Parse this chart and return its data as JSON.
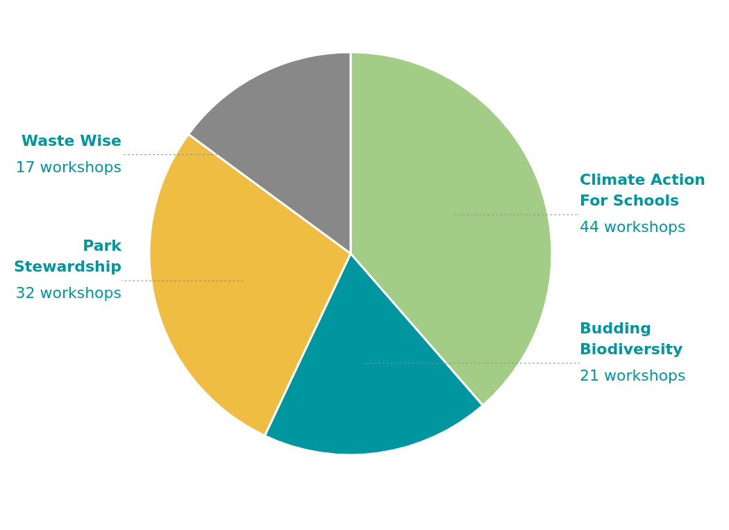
{
  "chart_data": {
    "type": "pie",
    "categories": [
      "Climate Action For Schools",
      "Budding Biodiversity",
      "Park Stewardship",
      "Waste Wise"
    ],
    "values": [
      44,
      21,
      32,
      17
    ],
    "colors": [
      "#a3cd86",
      "#0096a0",
      "#f0bd43",
      "#888888"
    ],
    "value_labels": [
      "44 workshops",
      "21 workshops",
      "32 workshops",
      "17 workshops"
    ],
    "legend": false
  }
}
